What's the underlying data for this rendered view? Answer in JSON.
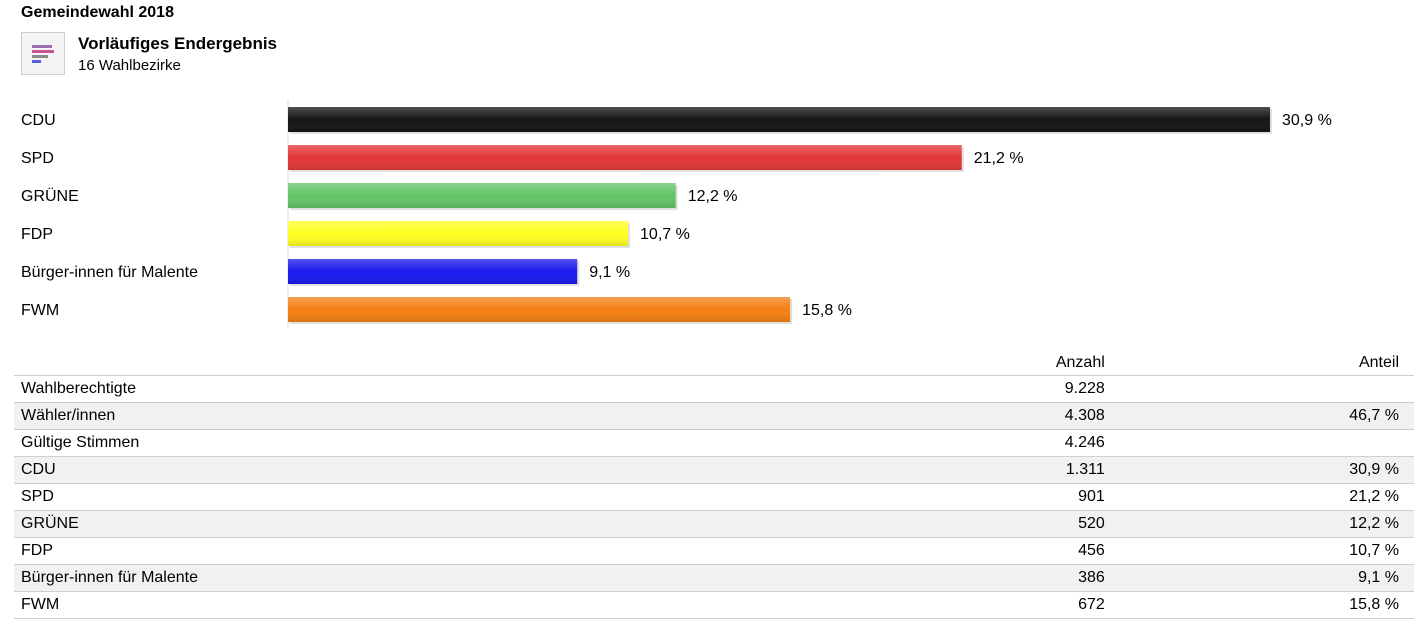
{
  "header": {
    "title": "Gemeindewahl 2018",
    "subtitle": "Vorläufiges Endergebnis",
    "detail": "16 Wahlbezirke",
    "icon": "bar-chart-icon"
  },
  "chart_data": {
    "type": "bar",
    "orientation": "horizontal",
    "categories": [
      "CDU",
      "SPD",
      "GRÜNE",
      "FDP",
      "Bürger-innen für Malente",
      "FWM"
    ],
    "values": [
      30.9,
      21.2,
      12.2,
      10.7,
      9.1,
      15.8
    ],
    "value_labels": [
      "30,9 %",
      "21,2 %",
      "12,2 %",
      "10,7 %",
      "9,1 %",
      "15,8 %"
    ],
    "colors": [
      "#151515",
      "#e23636",
      "#62c466",
      "#ffff22",
      "#1a1aee",
      "#f57f14"
    ],
    "xlim": [
      0,
      30.9
    ],
    "grid": false
  },
  "table": {
    "headers": [
      "",
      "Anzahl",
      "Anteil"
    ],
    "rows": [
      [
        "Wahlberechtigte",
        "9.228",
        ""
      ],
      [
        "Wähler/innen",
        "4.308",
        "46,7 %"
      ],
      [
        "Gültige Stimmen",
        "4.246",
        ""
      ],
      [
        "CDU",
        "1.311",
        "30,9 %"
      ],
      [
        "SPD",
        "901",
        "21,2 %"
      ],
      [
        "GRÜNE",
        "520",
        "12,2 %"
      ],
      [
        "FDP",
        "456",
        "10,7 %"
      ],
      [
        "Bürger-innen für Malente",
        "386",
        "9,1 %"
      ],
      [
        "FWM",
        "672",
        "15,8 %"
      ]
    ]
  }
}
